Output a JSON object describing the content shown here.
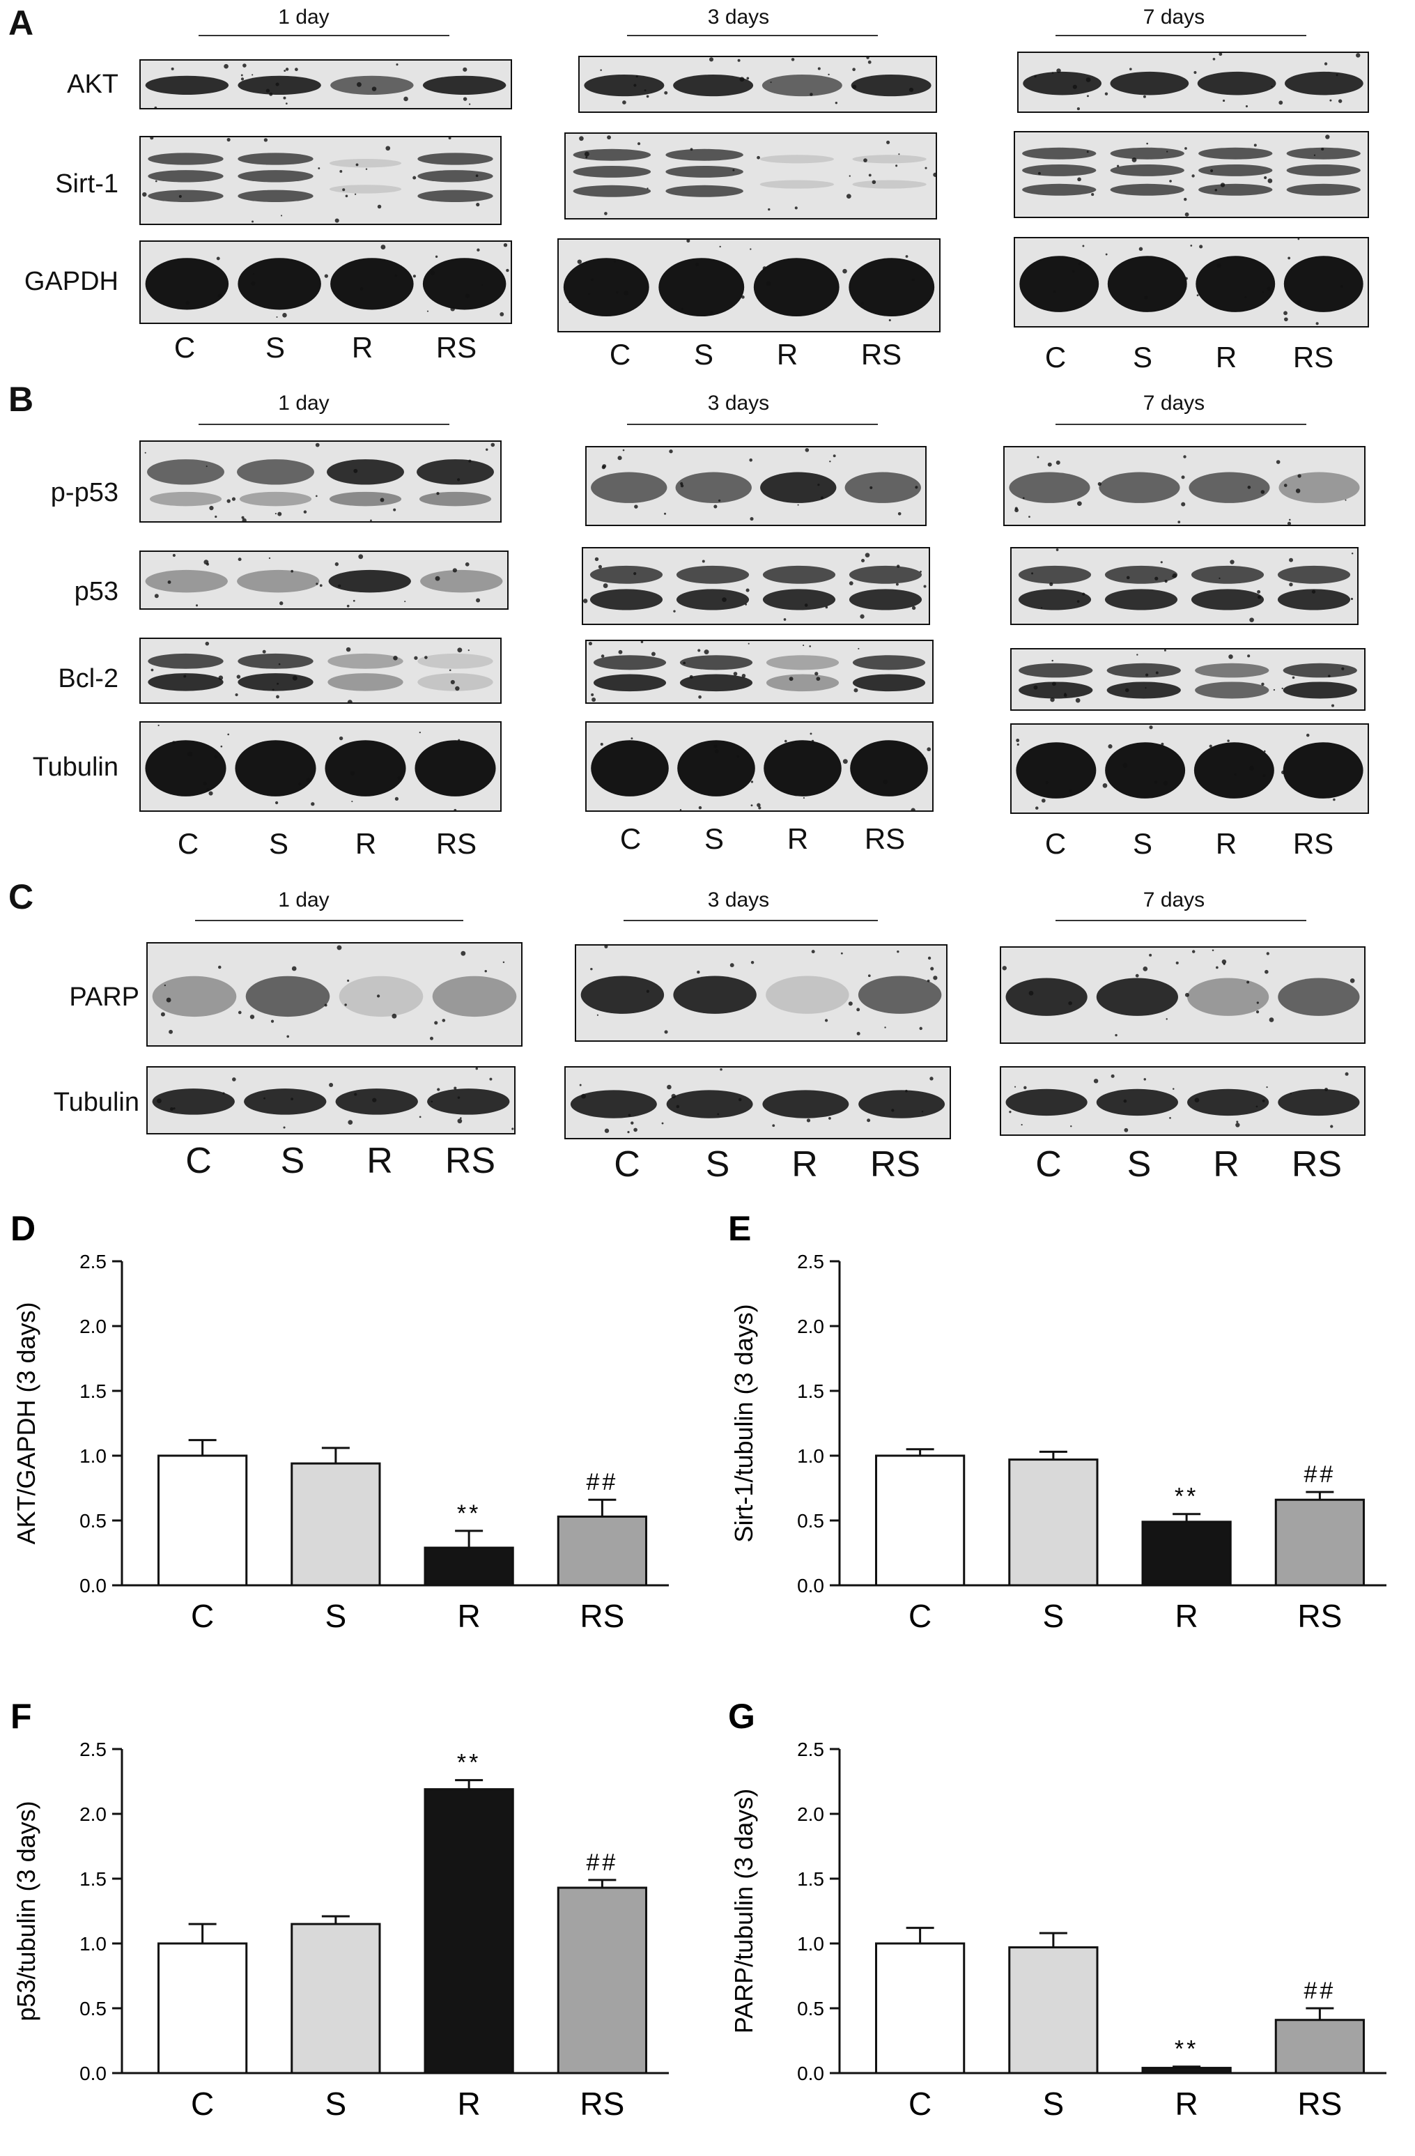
{
  "blots": {
    "panel_letters": [
      "A",
      "B",
      "C"
    ],
    "timepoints": [
      "1 day",
      "3 days",
      "7 days"
    ],
    "lanes": [
      "C",
      "S",
      "R",
      "RS"
    ],
    "panel_A_rows": [
      "AKT",
      "Sirt-1",
      "GAPDH"
    ],
    "panel_B_rows": [
      "p-p53",
      "p53",
      "Bcl-2",
      "Tubulin"
    ],
    "panel_C_rows": [
      "PARP",
      "Tubulin"
    ]
  },
  "chart_data": [
    {
      "panel": "D",
      "type": "bar",
      "categories": [
        "C",
        "S",
        "R",
        "RS"
      ],
      "values": [
        1.0,
        0.94,
        0.29,
        0.53
      ],
      "errors": [
        0.12,
        0.12,
        0.13,
        0.13
      ],
      "annotations": [
        "",
        "",
        "**",
        "##"
      ],
      "colors": [
        "#ffffff",
        "#d9d9d9",
        "#141414",
        "#a3a3a3"
      ],
      "ylabel": "AKT/GAPDH (3 days)",
      "ylim": [
        0,
        2.5
      ],
      "yticks": [
        "0.0",
        "0.5",
        "1.0",
        "1.5",
        "2.0",
        "2.5"
      ]
    },
    {
      "panel": "E",
      "type": "bar",
      "categories": [
        "C",
        "S",
        "R",
        "RS"
      ],
      "values": [
        1.0,
        0.97,
        0.49,
        0.66
      ],
      "errors": [
        0.05,
        0.06,
        0.06,
        0.06
      ],
      "annotations": [
        "",
        "",
        "**",
        "##"
      ],
      "colors": [
        "#ffffff",
        "#d9d9d9",
        "#141414",
        "#a3a3a3"
      ],
      "ylabel": "Sirt-1/tubulin (3 days)",
      "ylim": [
        0,
        2.5
      ],
      "yticks": [
        "0.0",
        "0.5",
        "1.0",
        "1.5",
        "2.0",
        "2.5"
      ]
    },
    {
      "panel": "F",
      "type": "bar",
      "categories": [
        "C",
        "S",
        "R",
        "RS"
      ],
      "values": [
        1.0,
        1.15,
        2.19,
        1.43
      ],
      "errors": [
        0.15,
        0.06,
        0.07,
        0.06
      ],
      "annotations": [
        "",
        "",
        "**",
        "##"
      ],
      "colors": [
        "#ffffff",
        "#d9d9d9",
        "#141414",
        "#a3a3a3"
      ],
      "ylabel": "p53/tubulin (3 days)",
      "ylim": [
        0,
        2.5
      ],
      "yticks": [
        "0.0",
        "0.5",
        "1.0",
        "1.5",
        "2.0",
        "2.5"
      ]
    },
    {
      "panel": "G",
      "type": "bar",
      "categories": [
        "C",
        "S",
        "R",
        "RS"
      ],
      "values": [
        1.0,
        0.97,
        0.04,
        0.41
      ],
      "errors": [
        0.12,
        0.11,
        0.01,
        0.09
      ],
      "annotations": [
        "",
        "",
        "**",
        "##"
      ],
      "colors": [
        "#ffffff",
        "#d9d9d9",
        "#141414",
        "#a3a3a3"
      ],
      "ylabel": "PARP/tubulin (3 days)",
      "ylim": [
        0,
        2.5
      ],
      "yticks": [
        "0.0",
        "0.5",
        "1.0",
        "1.5",
        "2.0",
        "2.5"
      ]
    }
  ]
}
